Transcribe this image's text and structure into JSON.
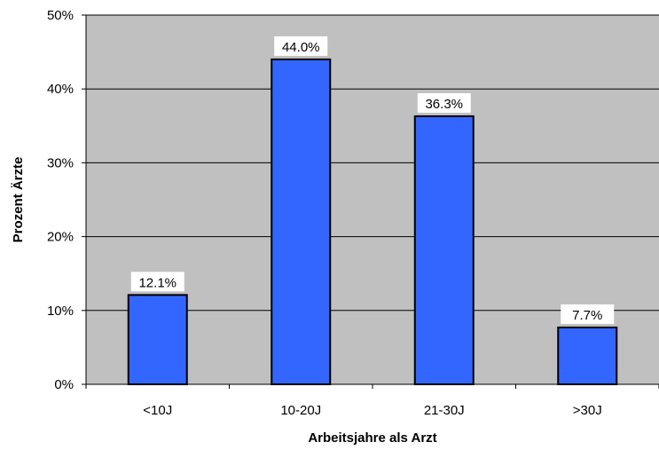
{
  "chart_data": {
    "type": "bar",
    "title": "",
    "xlabel": "Arbeitsjahre als Arzt",
    "ylabel": "Prozent Ärzte",
    "categories": [
      "<10J",
      "10-20J",
      "21-30J",
      ">30J"
    ],
    "values": [
      12.1,
      44.0,
      36.3,
      7.7
    ],
    "data_labels": [
      "12.1%",
      "44.0%",
      "36.3%",
      "7.7%"
    ],
    "ylim": [
      0,
      50
    ],
    "yticks": [
      0,
      10,
      20,
      30,
      40,
      50
    ],
    "ytick_labels": [
      "0%",
      "10%",
      "20%",
      "30%",
      "40%",
      "50%"
    ],
    "grid": true,
    "legend": "none",
    "colors": {
      "bar": "#3366ff",
      "bar_edge": "#000000",
      "plot_bg": "#c0c0c0",
      "gridline": "#000000",
      "label_bg": "#ffffff"
    }
  }
}
